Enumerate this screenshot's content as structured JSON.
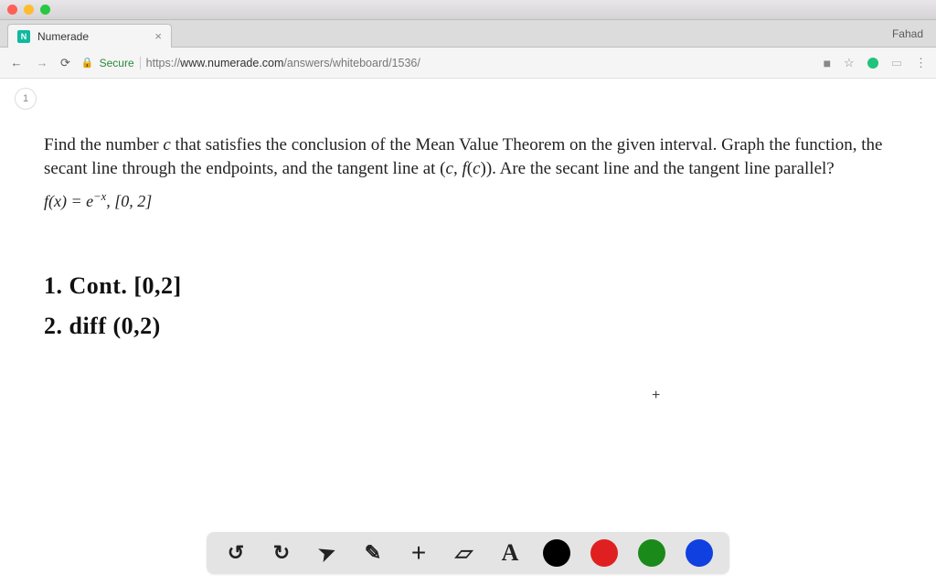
{
  "macos": {
    "traffic_colors": [
      "#ff5f57",
      "#febc2e",
      "#28c840"
    ]
  },
  "browser": {
    "tab": {
      "favicon_letter": "N",
      "title": "Numerade"
    },
    "user_label": "Fahad",
    "address": {
      "secure_label": "Secure",
      "scheme": "https://",
      "host": "www.numerade.com",
      "path": "/answers/whiteboard/1536/"
    }
  },
  "page": {
    "indicator": "1",
    "problem": {
      "line1": "Find the number <i>c</i> that satisfies the conclusion of the Mean Value Theorem on the given interval. Graph the function, the secant line through the endpoints, and the tangent line at (<i>c</i>,&nbsp;<i>f</i>(<i>c</i>)). Are the secant line and the tangent line parallel?",
      "fx": "<i>f</i>(<i>x</i>) = <i>e</i><sup>&minus;<i>x</i></sup>, [0, 2]"
    },
    "handwriting": {
      "line1": "1. Cont. [0,2]",
      "line2": "2. diff (0,2)"
    }
  },
  "toolbar": {
    "undo": "↺",
    "redo": "↻",
    "pointer": "➤",
    "pencil": "✎",
    "add": "+",
    "eraser": "▱",
    "text": "A",
    "colors": [
      "#000000",
      "#e02020",
      "#1a8a1a",
      "#1040e0"
    ]
  },
  "colors": {
    "secure_green": "#2a8a3a",
    "ext_green": "#1fc47a",
    "favicon_bg": "#10b8a0"
  }
}
